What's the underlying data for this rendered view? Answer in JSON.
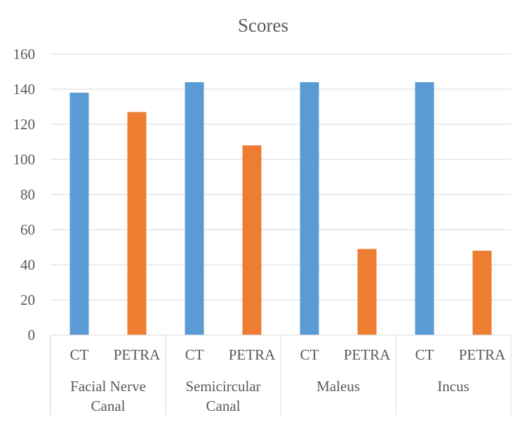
{
  "chart_data": {
    "type": "bar",
    "title": "Scores",
    "groups": [
      "Facial Nerve Canal",
      "Semicircular Canal",
      "Maleus",
      "Incus"
    ],
    "group_label_lines": [
      [
        "Facial Nerve",
        "Canal"
      ],
      [
        "Semicircular",
        "Canal"
      ],
      [
        "Maleus"
      ],
      [
        "Incus"
      ]
    ],
    "subcategories": [
      "CT",
      "PETRA"
    ],
    "bars": [
      {
        "group": "Facial Nerve Canal",
        "sub": "CT",
        "value": 138
      },
      {
        "group": "Facial Nerve Canal",
        "sub": "PETRA",
        "value": 127
      },
      {
        "group": "Semicircular Canal",
        "sub": "CT",
        "value": 144
      },
      {
        "group": "Semicircular Canal",
        "sub": "PETRA",
        "value": 108
      },
      {
        "group": "Maleus",
        "sub": "CT",
        "value": 144
      },
      {
        "group": "Maleus",
        "sub": "PETRA",
        "value": 49
      },
      {
        "group": "Incus",
        "sub": "CT",
        "value": 144
      },
      {
        "group": "Incus",
        "sub": "PETRA",
        "value": 48
      }
    ],
    "colors": {
      "CT": "#5B9BD5",
      "PETRA": "#ED7D31"
    },
    "ylim": [
      0,
      160
    ],
    "yticks": [
      0,
      20,
      40,
      60,
      80,
      100,
      120,
      140,
      160
    ],
    "grid": true,
    "legend": "none",
    "xlabel": "",
    "ylabel": ""
  }
}
